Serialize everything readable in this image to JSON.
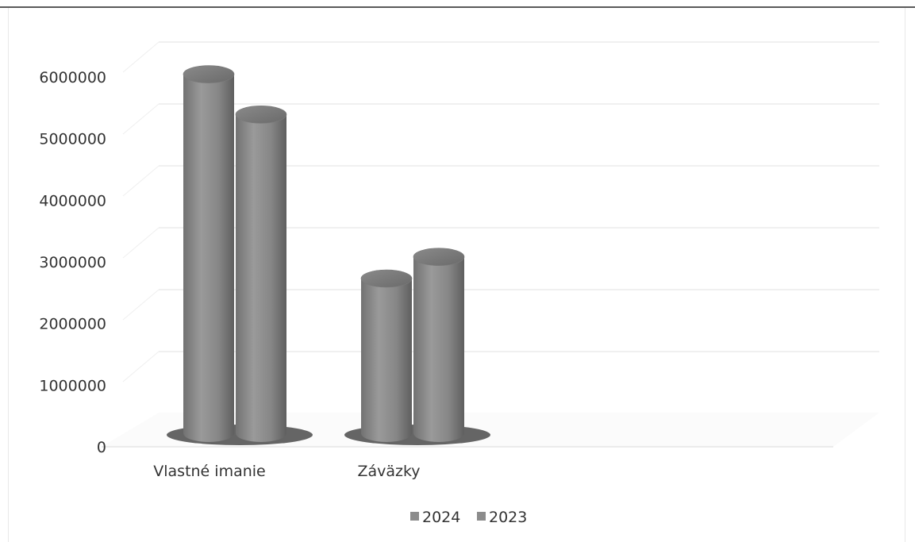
{
  "chart_data": {
    "type": "bar",
    "style": "3d-cylinder",
    "categories": [
      "Vlastné imanie",
      "Záväzky"
    ],
    "series": [
      {
        "name": "2024",
        "values": [
          5800000,
          2500000
        ],
        "color": "#8c8c8c"
      },
      {
        "name": "2023",
        "values": [
          5150000,
          2850000
        ],
        "color": "#8c8c8c"
      }
    ],
    "yticks": [
      "0",
      "1000000",
      "2000000",
      "3000000",
      "4000000",
      "5000000",
      "6000000"
    ],
    "ylim": [
      0,
      6000000
    ],
    "grid": true,
    "legend_position": "bottom-center",
    "title": "",
    "xlabel": "",
    "ylabel": ""
  }
}
